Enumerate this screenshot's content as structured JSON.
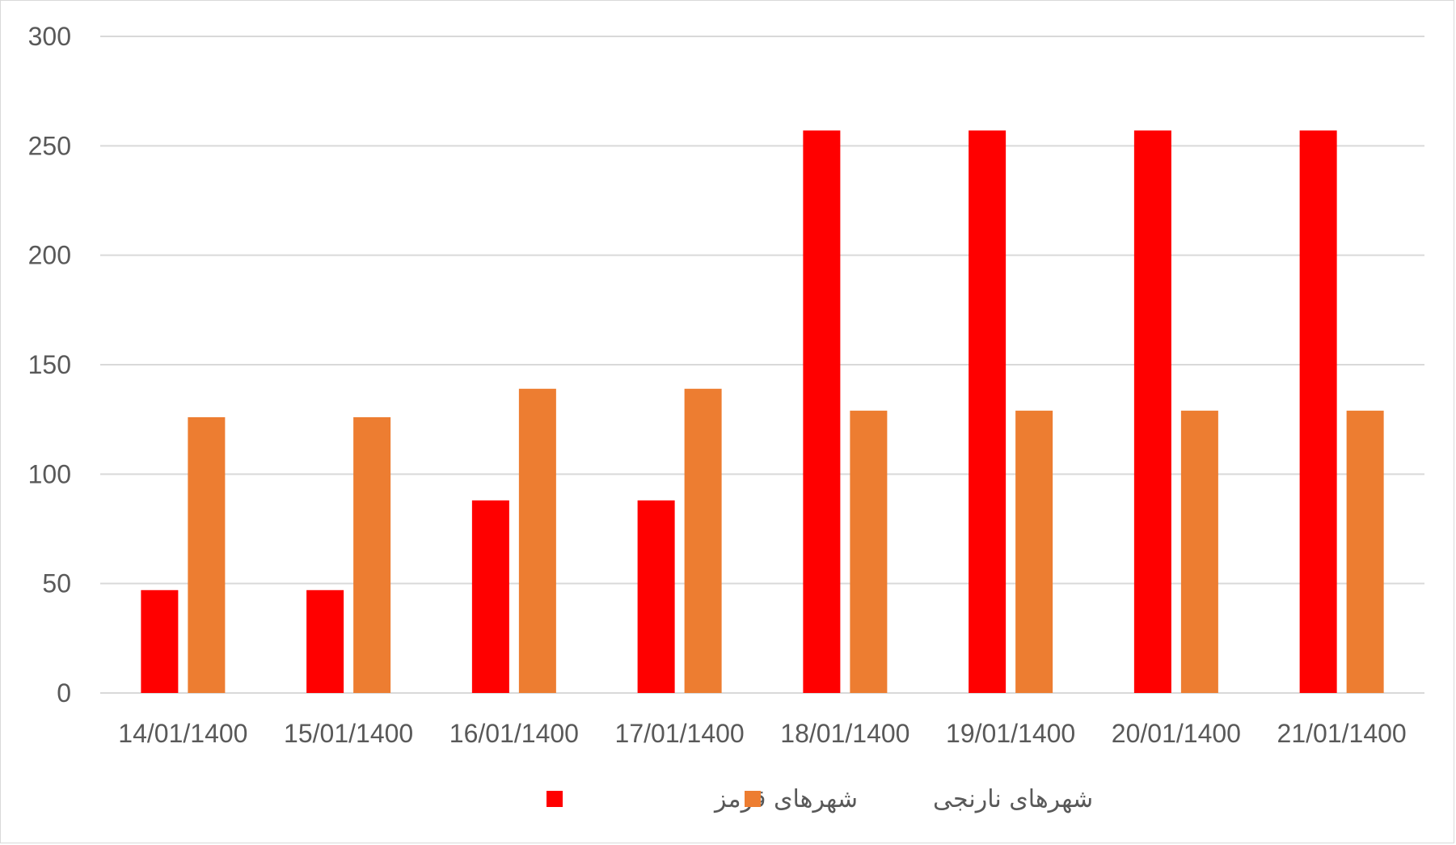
{
  "chart_data": {
    "type": "bar",
    "categories": [
      "14/01/1400",
      "15/01/1400",
      "16/01/1400",
      "17/01/1400",
      "18/01/1400",
      "19/01/1400",
      "20/01/1400",
      "21/01/1400"
    ],
    "series": [
      {
        "name": "شهرهای قرمز",
        "color": "#ff0000",
        "values": [
          47,
          47,
          88,
          88,
          257,
          257,
          257,
          257
        ]
      },
      {
        "name": "شهرهای نارنجی",
        "color": "#ed7d31",
        "values": [
          126,
          126,
          139,
          139,
          129,
          129,
          129,
          129
        ]
      }
    ],
    "ylim": [
      0,
      300
    ],
    "yticks": [
      "0",
      "50",
      "100",
      "150",
      "200",
      "250",
      "300"
    ],
    "grid": true,
    "legend_position": "bottom"
  }
}
